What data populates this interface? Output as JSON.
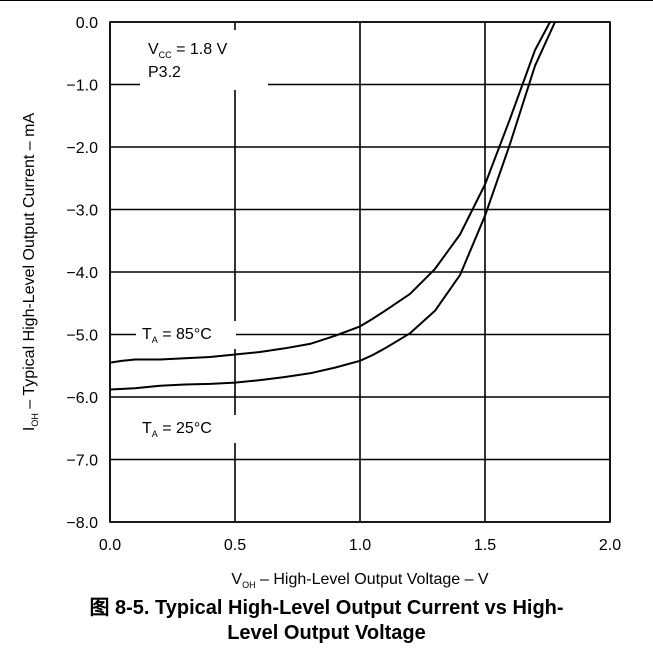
{
  "chart_data": {
    "type": "line",
    "title": "",
    "xlabel": "V_OH – High-Level Output Voltage – V",
    "ylabel": "I_OH – Typical High-Level Output Current – mA",
    "xlim": [
      0.0,
      2.0
    ],
    "ylim": [
      -8.0,
      0.0
    ],
    "x_ticks": [
      "0.0",
      "0.5",
      "1.0",
      "1.5",
      "2.0"
    ],
    "y_ticks": [
      "0.0",
      "−1.0",
      "−2.0",
      "−3.0",
      "−4.0",
      "−5.0",
      "−6.0",
      "−7.0",
      "−8.0"
    ],
    "grid": true,
    "annotations": {
      "vcc": {
        "main": "V",
        "sub": "CC",
        "rest": " = 1.8 V"
      },
      "pin": "P3.2"
    },
    "series": [
      {
        "name": "T_A = 85°C",
        "label": {
          "main": "T",
          "sub": "A",
          "rest": " = 85°C"
        },
        "x": [
          0.0,
          0.05,
          0.1,
          0.2,
          0.3,
          0.4,
          0.5,
          0.6,
          0.7,
          0.8,
          0.9,
          1.0,
          1.05,
          1.1,
          1.2,
          1.3,
          1.4,
          1.5,
          1.6,
          1.7,
          1.76
        ],
        "y": [
          -5.45,
          -5.42,
          -5.4,
          -5.4,
          -5.38,
          -5.36,
          -5.32,
          -5.28,
          -5.22,
          -5.15,
          -5.02,
          -4.87,
          -4.75,
          -4.62,
          -4.35,
          -3.95,
          -3.4,
          -2.6,
          -1.55,
          -0.45,
          0.0
        ]
      },
      {
        "name": "T_A = 25°C",
        "label": {
          "main": "T",
          "sub": "A",
          "rest": " = 25°C"
        },
        "x": [
          0.0,
          0.05,
          0.1,
          0.2,
          0.3,
          0.4,
          0.5,
          0.6,
          0.7,
          0.8,
          0.9,
          1.0,
          1.05,
          1.1,
          1.2,
          1.3,
          1.4,
          1.5,
          1.6,
          1.7,
          1.78
        ],
        "y": [
          -5.88,
          -5.87,
          -5.86,
          -5.82,
          -5.8,
          -5.79,
          -5.77,
          -5.73,
          -5.68,
          -5.62,
          -5.53,
          -5.42,
          -5.33,
          -5.22,
          -4.98,
          -4.62,
          -4.05,
          -3.1,
          -1.95,
          -0.7,
          0.0
        ]
      }
    ]
  },
  "caption": {
    "line1": "图 8-5. Typical High-Level Output Current vs High-",
    "line2": "Level Output Voltage"
  }
}
